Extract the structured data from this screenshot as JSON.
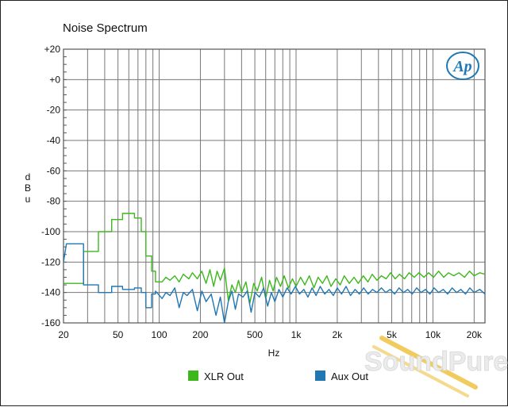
{
  "chart_data": {
    "type": "line",
    "title": "Noise Spectrum",
    "xlabel": "Hz",
    "ylabel": "dBu",
    "x_scale": "log",
    "xlim": [
      20,
      24000
    ],
    "ylim": [
      -160,
      20
    ],
    "grid": true,
    "legend_position": "bottom-center",
    "x_ticks": [
      {
        "value": 20,
        "label": "20"
      },
      {
        "value": 50,
        "label": "50"
      },
      {
        "value": 100,
        "label": "100"
      },
      {
        "value": 200,
        "label": "200"
      },
      {
        "value": 500,
        "label": "500"
      },
      {
        "value": 1000,
        "label": "1k"
      },
      {
        "value": 2000,
        "label": "2k"
      },
      {
        "value": 5000,
        "label": "5k"
      },
      {
        "value": 10000,
        "label": "10k"
      },
      {
        "value": 20000,
        "label": "20k"
      }
    ],
    "y_ticks": [
      {
        "value": 20,
        "label": "+20"
      },
      {
        "value": 0,
        "label": "+0"
      },
      {
        "value": -20,
        "label": "-20"
      },
      {
        "value": -40,
        "label": "-40"
      },
      {
        "value": -60,
        "label": "-60"
      },
      {
        "value": -80,
        "label": "-80"
      },
      {
        "value": -100,
        "label": "-100"
      },
      {
        "value": -120,
        "label": "-120"
      },
      {
        "value": -140,
        "label": "-140"
      },
      {
        "value": -160,
        "label": "-160"
      }
    ],
    "series": [
      {
        "name": "XLR Out",
        "color": "#3cb81c",
        "points": [
          [
            20,
            -134
          ],
          [
            28,
            -134
          ],
          [
            28,
            -113
          ],
          [
            36,
            -113
          ],
          [
            36,
            -100
          ],
          [
            45,
            -100
          ],
          [
            45,
            -92
          ],
          [
            54,
            -92
          ],
          [
            54,
            -88
          ],
          [
            66,
            -88
          ],
          [
            66,
            -91
          ],
          [
            74,
            -91
          ],
          [
            74,
            -100
          ],
          [
            80,
            -100
          ],
          [
            80,
            -116
          ],
          [
            88,
            -116
          ],
          [
            88,
            -126
          ],
          [
            94,
            -126
          ],
          [
            94,
            -133
          ],
          [
            105,
            -133
          ],
          [
            112,
            -130
          ],
          [
            120,
            -132
          ],
          [
            130,
            -129
          ],
          [
            140,
            -133
          ],
          [
            150,
            -128
          ],
          [
            165,
            -131
          ],
          [
            175,
            -127
          ],
          [
            190,
            -131
          ],
          [
            205,
            -126
          ],
          [
            220,
            -134
          ],
          [
            235,
            -125
          ],
          [
            250,
            -136
          ],
          [
            265,
            -126
          ],
          [
            280,
            -132
          ],
          [
            300,
            -124
          ],
          [
            320,
            -145
          ],
          [
            340,
            -135
          ],
          [
            360,
            -140
          ],
          [
            380,
            -132
          ],
          [
            400,
            -140
          ],
          [
            430,
            -133
          ],
          [
            460,
            -147
          ],
          [
            490,
            -134
          ],
          [
            520,
            -139
          ],
          [
            560,
            -130
          ],
          [
            600,
            -144
          ],
          [
            640,
            -132
          ],
          [
            680,
            -139
          ],
          [
            720,
            -130
          ],
          [
            770,
            -136
          ],
          [
            820,
            -129
          ],
          [
            880,
            -137
          ],
          [
            940,
            -131
          ],
          [
            1000,
            -136
          ],
          [
            1080,
            -130
          ],
          [
            1160,
            -135
          ],
          [
            1250,
            -129
          ],
          [
            1350,
            -137
          ],
          [
            1450,
            -130
          ],
          [
            1560,
            -134
          ],
          [
            1680,
            -129
          ],
          [
            1800,
            -136
          ],
          [
            1950,
            -131
          ],
          [
            2100,
            -135
          ],
          [
            2250,
            -129
          ],
          [
            2450,
            -134
          ],
          [
            2650,
            -130
          ],
          [
            2850,
            -134
          ],
          [
            3100,
            -129
          ],
          [
            3350,
            -133
          ],
          [
            3600,
            -128
          ],
          [
            3900,
            -132
          ],
          [
            4200,
            -129
          ],
          [
            4550,
            -131
          ],
          [
            4900,
            -127
          ],
          [
            5300,
            -131
          ],
          [
            5700,
            -128
          ],
          [
            6200,
            -131
          ],
          [
            6700,
            -127
          ],
          [
            7300,
            -130
          ],
          [
            7900,
            -127
          ],
          [
            8600,
            -130
          ],
          [
            9300,
            -127
          ],
          [
            10100,
            -130
          ],
          [
            11000,
            -126
          ],
          [
            12000,
            -130
          ],
          [
            13000,
            -127
          ],
          [
            14200,
            -129
          ],
          [
            15500,
            -127
          ],
          [
            17000,
            -130
          ],
          [
            18500,
            -126
          ],
          [
            20000,
            -129
          ],
          [
            22000,
            -127
          ],
          [
            24000,
            -128
          ]
        ]
      },
      {
        "name": "Aux Out",
        "color": "#1f77b4",
        "points": [
          [
            20,
            -120
          ],
          [
            21,
            -108
          ],
          [
            28,
            -108
          ],
          [
            28,
            -135
          ],
          [
            36,
            -135
          ],
          [
            36,
            -140
          ],
          [
            45,
            -140
          ],
          [
            45,
            -136
          ],
          [
            54,
            -136
          ],
          [
            54,
            -138
          ],
          [
            66,
            -138
          ],
          [
            66,
            -137
          ],
          [
            74,
            -137
          ],
          [
            74,
            -140
          ],
          [
            80,
            -140
          ],
          [
            80,
            -150
          ],
          [
            88,
            -150
          ],
          [
            88,
            -141
          ],
          [
            94,
            -141
          ],
          [
            94,
            -139
          ],
          [
            105,
            -144
          ],
          [
            112,
            -140
          ],
          [
            120,
            -142
          ],
          [
            130,
            -137
          ],
          [
            140,
            -150
          ],
          [
            150,
            -140
          ],
          [
            160,
            -142
          ],
          [
            175,
            -138
          ],
          [
            190,
            -152
          ],
          [
            205,
            -139
          ],
          [
            220,
            -146
          ],
          [
            240,
            -141
          ],
          [
            260,
            -155
          ],
          [
            280,
            -143
          ],
          [
            300,
            -160
          ],
          [
            320,
            -146
          ],
          [
            340,
            -139
          ],
          [
            360,
            -151
          ],
          [
            380,
            -141
          ],
          [
            410,
            -143
          ],
          [
            440,
            -139
          ],
          [
            470,
            -153
          ],
          [
            500,
            -140
          ],
          [
            540,
            -143
          ],
          [
            580,
            -137
          ],
          [
            620,
            -149
          ],
          [
            660,
            -140
          ],
          [
            700,
            -146
          ],
          [
            750,
            -138
          ],
          [
            800,
            -143
          ],
          [
            860,
            -137
          ],
          [
            920,
            -141
          ],
          [
            990,
            -136
          ],
          [
            1060,
            -141
          ],
          [
            1140,
            -138
          ],
          [
            1220,
            -143
          ],
          [
            1310,
            -137
          ],
          [
            1400,
            -142
          ],
          [
            1500,
            -136
          ],
          [
            1620,
            -141
          ],
          [
            1740,
            -138
          ],
          [
            1870,
            -142
          ],
          [
            2000,
            -137
          ],
          [
            2150,
            -141
          ],
          [
            2320,
            -136
          ],
          [
            2500,
            -142
          ],
          [
            2700,
            -138
          ],
          [
            2900,
            -141
          ],
          [
            3120,
            -137
          ],
          [
            3360,
            -141
          ],
          [
            3620,
            -138
          ],
          [
            3900,
            -140
          ],
          [
            4200,
            -137
          ],
          [
            4520,
            -140
          ],
          [
            4870,
            -138
          ],
          [
            5250,
            -141
          ],
          [
            5650,
            -137
          ],
          [
            6100,
            -140
          ],
          [
            6550,
            -138
          ],
          [
            7050,
            -141
          ],
          [
            7600,
            -137
          ],
          [
            8200,
            -140
          ],
          [
            8800,
            -138
          ],
          [
            9500,
            -141
          ],
          [
            10200,
            -137
          ],
          [
            11000,
            -140
          ],
          [
            11900,
            -138
          ],
          [
            12800,
            -141
          ],
          [
            13800,
            -137
          ],
          [
            14900,
            -140
          ],
          [
            16000,
            -138
          ],
          [
            17300,
            -141
          ],
          [
            18600,
            -137
          ],
          [
            20000,
            -140
          ],
          [
            22000,
            -138
          ],
          [
            24000,
            -141
          ]
        ]
      }
    ]
  },
  "logo": {
    "text": "Ap"
  },
  "watermark": {
    "text": "SoundPure"
  }
}
